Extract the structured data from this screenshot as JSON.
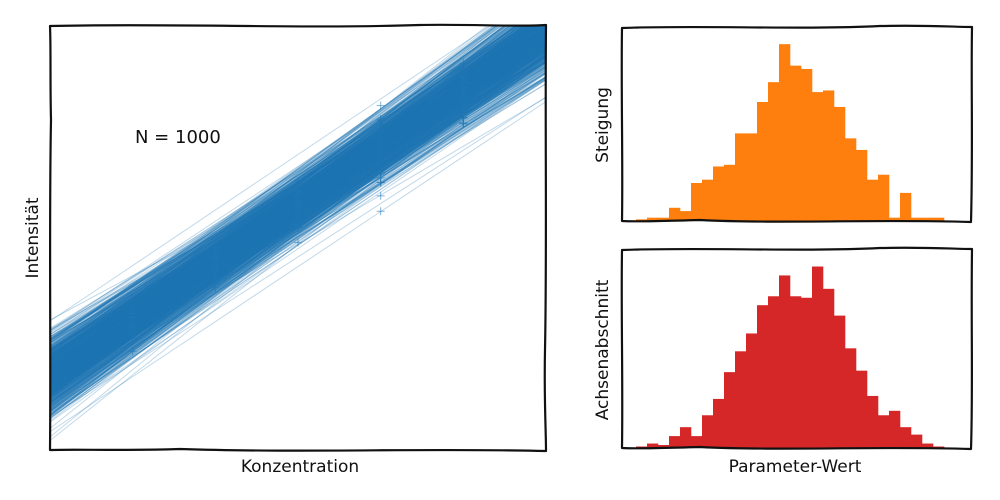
{
  "chart_data": [
    {
      "type": "scatter",
      "title": "",
      "xlabel": "Konzentration",
      "ylabel": "Intensität",
      "annotation": "N = 1000",
      "grid": false,
      "x_concentrations": [
        1,
        2,
        3,
        4,
        5
      ],
      "y_samples_center": [
        2.2,
        3.15,
        4.05,
        5.0,
        5.9
      ],
      "y_samples_spread": [
        0.35,
        0.35,
        0.45,
        0.6,
        0.5
      ],
      "n_lines": 1000,
      "slope_mean": 0.93,
      "intercept_mean": 1.3,
      "line_color": "#1f77b4"
    },
    {
      "type": "bar",
      "title": "",
      "xlabel": "",
      "ylabel": "Steigung",
      "series": [
        {
          "color": "#ff7f0e",
          "values": [
            1,
            2,
            2,
            8,
            6,
            23,
            25,
            33,
            34,
            53,
            53,
            72,
            84,
            107,
            94,
            92,
            78,
            79,
            69,
            50,
            43,
            25,
            28,
            2,
            17,
            2,
            2,
            2
          ]
        }
      ]
    },
    {
      "type": "bar",
      "title": "",
      "xlabel": "Parameter-Wert",
      "ylabel": "Achsenabschnitt",
      "series": [
        {
          "color": "#d62728",
          "values": [
            1,
            3,
            2,
            8,
            14,
            8,
            22,
            33,
            51,
            65,
            77,
            96,
            102,
            116,
            102,
            101,
            122,
            107,
            89,
            67,
            52,
            35,
            22,
            25,
            14,
            9,
            3,
            1
          ]
        }
      ]
    }
  ]
}
